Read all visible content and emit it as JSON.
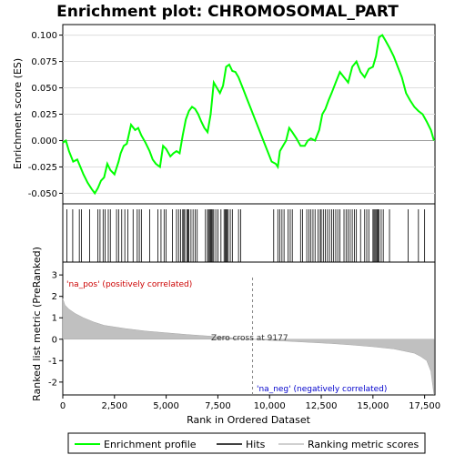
{
  "chart_data": {
    "type": "line",
    "title": "Enrichment plot: CHROMOSOMAL_PART",
    "xlabel": "Rank in Ordered Dataset",
    "ylabel_top": "Enrichment score (ES)",
    "ylabel_bottom": "Ranked list metric (PreRanked)",
    "xlim": [
      0,
      18000
    ],
    "es_ylim": [
      -0.06,
      0.11
    ],
    "metric_ylim": [
      -2.6,
      3.6
    ],
    "x_ticks": [
      0,
      2500,
      5000,
      7500,
      10000,
      12500,
      15000,
      17500
    ],
    "x_tick_labels": [
      "0",
      "2,500",
      "5,000",
      "7,500",
      "10,000",
      "12,500",
      "15,000",
      "17,500"
    ],
    "es_ticks": [
      -0.05,
      -0.025,
      0.0,
      0.025,
      0.05,
      0.075,
      0.1
    ],
    "es_tick_labels": [
      "-0.050",
      "-0.025",
      "0.000",
      "0.025",
      "0.050",
      "0.075",
      "0.100"
    ],
    "metric_ticks": [
      -2,
      -1,
      0,
      1,
      2,
      3
    ],
    "metric_tick_labels": [
      "-2",
      "-1",
      "0",
      "1",
      "2",
      "3"
    ],
    "annotations": {
      "pos_label": "'na_pos' (positively correlated)",
      "neg_label": "'na_neg' (negatively correlated)",
      "zero_cross": "Zero cross at 9177"
    },
    "zero_cross_rank": 9177,
    "series": [
      {
        "name": "Enrichment profile",
        "color": "#00ff00",
        "x": [
          0,
          150,
          300,
          500,
          700,
          850,
          1000,
          1200,
          1400,
          1550,
          1700,
          1850,
          2000,
          2150,
          2300,
          2500,
          2700,
          2800,
          2950,
          3100,
          3300,
          3500,
          3650,
          3800,
          4000,
          4200,
          4350,
          4500,
          4700,
          4850,
          5000,
          5200,
          5350,
          5500,
          5650,
          5800,
          5950,
          6100,
          6250,
          6400,
          6550,
          6700,
          6850,
          7000,
          7150,
          7300,
          7450,
          7600,
          7750,
          7900,
          8050,
          8200,
          8350,
          8500,
          8700,
          8900,
          9100,
          9300,
          9500,
          9700,
          9900,
          10100,
          10300,
          10400,
          10500,
          10650,
          10800,
          10950,
          11100,
          11300,
          11500,
          11700,
          11850,
          12000,
          12200,
          12400,
          12550,
          12700,
          12850,
          13000,
          13200,
          13400,
          13600,
          13800,
          14000,
          14200,
          14400,
          14600,
          14800,
          15000,
          15150,
          15300,
          15450,
          15600,
          15800,
          16000,
          16200,
          16400,
          16600,
          16800,
          17000,
          17200,
          17400,
          17600,
          17800,
          17950
        ],
        "y": [
          -0.002,
          0.0,
          -0.01,
          -0.02,
          -0.018,
          -0.025,
          -0.032,
          -0.04,
          -0.046,
          -0.05,
          -0.045,
          -0.038,
          -0.035,
          -0.022,
          -0.028,
          -0.032,
          -0.02,
          -0.012,
          -0.005,
          -0.003,
          0.015,
          0.01,
          0.012,
          0.005,
          -0.002,
          -0.01,
          -0.018,
          -0.022,
          -0.025,
          -0.005,
          -0.008,
          -0.015,
          -0.012,
          -0.01,
          -0.012,
          0.005,
          0.02,
          0.028,
          0.032,
          0.03,
          0.025,
          0.018,
          0.012,
          0.008,
          0.025,
          0.055,
          0.05,
          0.045,
          0.052,
          0.07,
          0.072,
          0.066,
          0.065,
          0.06,
          0.05,
          0.04,
          0.03,
          0.02,
          0.01,
          0.0,
          -0.01,
          -0.02,
          -0.022,
          -0.025,
          -0.01,
          -0.005,
          0.0,
          0.012,
          0.008,
          0.002,
          -0.005,
          -0.005,
          0.0,
          0.002,
          0.0,
          0.01,
          0.025,
          0.03,
          0.038,
          0.045,
          0.055,
          0.065,
          0.06,
          0.055,
          0.07,
          0.075,
          0.065,
          0.06,
          0.068,
          0.07,
          0.08,
          0.098,
          0.1,
          0.095,
          0.088,
          0.08,
          0.07,
          0.06,
          0.045,
          0.038,
          0.032,
          0.028,
          0.025,
          0.018,
          0.01,
          0.0
        ]
      },
      {
        "name": "Hits",
        "color": "#000000"
      },
      {
        "name": "Ranking metric scores",
        "color": "#c0c0c0",
        "x": [
          0,
          100,
          300,
          600,
          1000,
          1500,
          2000,
          3000,
          4000,
          5000,
          6000,
          7000,
          8000,
          9177,
          10000,
          11000,
          12000,
          13000,
          14000,
          15000,
          16000,
          16500,
          17000,
          17300,
          17600,
          17800,
          17950
        ],
        "y": [
          1.9,
          1.6,
          1.4,
          1.2,
          1.0,
          0.8,
          0.65,
          0.5,
          0.38,
          0.3,
          0.22,
          0.15,
          0.08,
          0.0,
          -0.05,
          -0.1,
          -0.15,
          -0.2,
          -0.27,
          -0.35,
          -0.45,
          -0.55,
          -0.65,
          -0.8,
          -1.0,
          -1.5,
          -2.6
        ]
      }
    ],
    "hit_ranks": [
      200,
      480,
      800,
      900,
      1300,
      1700,
      1800,
      1950,
      2050,
      2200,
      2300,
      2600,
      2700,
      2850,
      3000,
      3150,
      3400,
      3600,
      3700,
      3800,
      4200,
      4600,
      4750,
      4900,
      5000,
      5300,
      5500,
      5600,
      5700,
      5800,
      5850,
      5900,
      6000,
      6050,
      6100,
      6200,
      6300,
      6400,
      6500,
      6900,
      7000,
      7050,
      7100,
      7150,
      7200,
      7250,
      7300,
      7400,
      7500,
      7650,
      7800,
      7850,
      7900,
      7950,
      8000,
      8100,
      8200,
      8500,
      8600,
      10200,
      10400,
      10500,
      10600,
      10700,
      10900,
      11000,
      11100,
      11500,
      11600,
      11800,
      11900,
      12000,
      12100,
      12200,
      12350,
      12450,
      12500,
      12600,
      12700,
      12800,
      12900,
      13000,
      13100,
      13200,
      13300,
      13400,
      13600,
      13700,
      13800,
      13900,
      14000,
      14100,
      14200,
      14400,
      14600,
      14700,
      14800,
      15000,
      15050,
      15100,
      15150,
      15200,
      15250,
      15300,
      15400,
      15500,
      15800,
      16700,
      17200,
      17500
    ],
    "legend_position": "bottom"
  }
}
